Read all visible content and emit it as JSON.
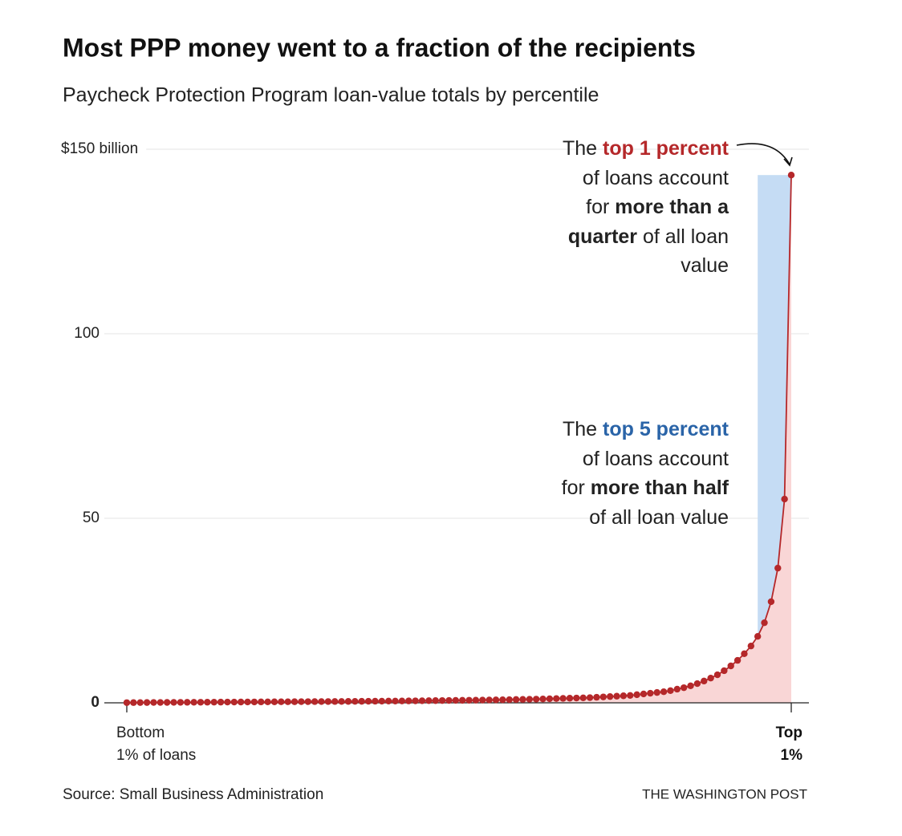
{
  "chart_data": {
    "type": "line",
    "title": "Most PPP money went to a fraction of the recipients",
    "subtitle": "Paycheck Protection Program loan-value totals by percentile",
    "source": "Source: Small Business Administration",
    "credit": "THE WASHINGTON POST",
    "x": [
      1,
      2,
      3,
      4,
      5,
      6,
      7,
      8,
      9,
      10,
      11,
      12,
      13,
      14,
      15,
      16,
      17,
      18,
      19,
      20,
      21,
      22,
      23,
      24,
      25,
      26,
      27,
      28,
      29,
      30,
      31,
      32,
      33,
      34,
      35,
      36,
      37,
      38,
      39,
      40,
      41,
      42,
      43,
      44,
      45,
      46,
      47,
      48,
      49,
      50,
      51,
      52,
      53,
      54,
      55,
      56,
      57,
      58,
      59,
      60,
      61,
      62,
      63,
      64,
      65,
      66,
      67,
      68,
      69,
      70,
      71,
      72,
      73,
      74,
      75,
      76,
      77,
      78,
      79,
      80,
      81,
      82,
      83,
      84,
      85,
      86,
      87,
      88,
      89,
      90,
      91,
      92,
      93,
      94,
      95,
      96,
      97,
      98,
      99,
      100
    ],
    "series": [
      {
        "name": "Loan value",
        "color": "#b5282a",
        "area_color": "#f9d6d6",
        "values": [
          0.05,
          0.06,
          0.07,
          0.08,
          0.09,
          0.1,
          0.11,
          0.12,
          0.13,
          0.14,
          0.15,
          0.16,
          0.17,
          0.18,
          0.19,
          0.2,
          0.21,
          0.22,
          0.23,
          0.24,
          0.25,
          0.26,
          0.27,
          0.28,
          0.29,
          0.3,
          0.31,
          0.32,
          0.33,
          0.34,
          0.35,
          0.36,
          0.37,
          0.38,
          0.4,
          0.41,
          0.42,
          0.44,
          0.45,
          0.47,
          0.48,
          0.5,
          0.52,
          0.54,
          0.56,
          0.58,
          0.6,
          0.62,
          0.64,
          0.66,
          0.68,
          0.7,
          0.72,
          0.75,
          0.78,
          0.8,
          0.83,
          0.86,
          0.9,
          0.93,
          0.97,
          1.0,
          1.05,
          1.1,
          1.15,
          1.2,
          1.25,
          1.3,
          1.35,
          1.4,
          1.5,
          1.6,
          1.7,
          1.8,
          1.9,
          2.0,
          2.2,
          2.4,
          2.6,
          2.8,
          3.0,
          3.3,
          3.7,
          4.1,
          4.6,
          5.2,
          5.9,
          6.7,
          7.6,
          8.7,
          10,
          11.5,
          13.3,
          15.4,
          18,
          21.7,
          27.4,
          36.5,
          55.2,
          143
        ]
      }
    ],
    "highlight": {
      "x": [
        95,
        100
      ],
      "color": "#c5dcf4"
    },
    "xlim": [
      1,
      100
    ],
    "xticks": [
      {
        "value": 1,
        "label": [
          "Bottom",
          "1% of loans"
        ]
      },
      {
        "value": 100,
        "label": [
          "Top",
          "1%"
        ]
      }
    ],
    "ylim": [
      0,
      150
    ],
    "yticks": [
      0,
      50,
      100,
      {
        "value": 150,
        "label": "$150 billion"
      }
    ],
    "grid": true,
    "annotations": [
      {
        "parts": [
          {
            "text": "The "
          },
          {
            "text": "top 1 percent",
            "bold": true,
            "color": "#b5282a"
          },
          {
            "text": " of loans account for "
          },
          {
            "text": "more than a quarter",
            "bold": true
          },
          {
            "text": " of all loan value"
          }
        ]
      },
      {
        "parts": [
          {
            "text": "The "
          },
          {
            "text": "top 5 percent",
            "bold": true,
            "color": "#2a64a8"
          },
          {
            "text": " of loans account for "
          },
          {
            "text": "more than half",
            "bold": true
          },
          {
            "text": " of all loan value"
          }
        ]
      }
    ]
  }
}
